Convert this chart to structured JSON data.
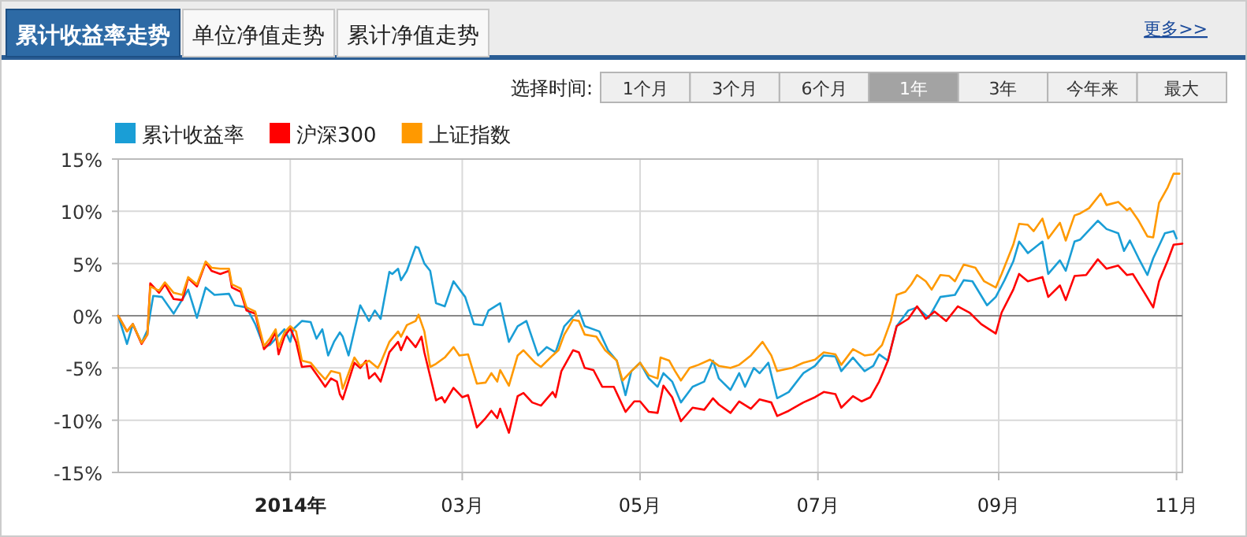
{
  "chart_data": {
    "type": "line",
    "annotations": [
      "累计收益率走势",
      "单位净值走势",
      "累计净值走势",
      "更多>>",
      "选择时间:",
      "1个月",
      "3个月",
      "6个月",
      "1年",
      "3年",
      "今年来",
      "最大"
    ],
    "xlim": [
      "2013-11-03",
      "2014-11-03"
    ],
    "xticks": [
      {
        "value": "2014-01-01",
        "label": "2014年"
      },
      {
        "value": "2014-03-01",
        "label": "03月"
      },
      {
        "value": "2014-05-01",
        "label": "05月"
      },
      {
        "value": "2014-07-01",
        "label": "07月"
      },
      {
        "value": "2014-09-01",
        "label": "09月"
      },
      {
        "value": "2014-11-01",
        "label": "11月"
      }
    ],
    "ylim": [
      -15,
      15
    ],
    "yticks": [
      {
        "value": -15,
        "label": "-15%"
      },
      {
        "value": -10,
        "label": "-10%"
      },
      {
        "value": -5,
        "label": "-5%"
      },
      {
        "value": 0,
        "label": "0%"
      },
      {
        "value": 5,
        "label": "5%"
      },
      {
        "value": 10,
        "label": "10%"
      },
      {
        "value": 15,
        "label": "15%"
      }
    ],
    "grid": true,
    "legend": "top left",
    "ref_lines": [
      {
        "axis": "y",
        "value": 0,
        "color": "#888888"
      }
    ],
    "series": [
      {
        "name": "累计收益率",
        "color": "#1a9ed6",
        "x": [
          "2013-11-03",
          "2013-11-06",
          "2013-11-08",
          "2013-11-11",
          "2013-11-13",
          "2013-11-15",
          "2013-11-18",
          "2013-11-22",
          "2013-11-27",
          "2013-11-30",
          "2013-12-03",
          "2013-12-06",
          "2013-12-11",
          "2013-12-13",
          "2013-12-17",
          "2013-12-20",
          "2013-12-23",
          "2013-12-25",
          "2013-12-30",
          "2014-01-01",
          "2014-01-02",
          "2014-01-05",
          "2014-01-08",
          "2014-01-10",
          "2014-01-12",
          "2014-01-14",
          "2014-01-16",
          "2014-01-18",
          "2014-01-19",
          "2014-01-21",
          "2014-01-25",
          "2014-01-28",
          "2014-01-30",
          "2014-02-01",
          "2014-02-04",
          "2014-02-05",
          "2014-02-07",
          "2014-02-08",
          "2014-02-10",
          "2014-02-13",
          "2014-02-14",
          "2014-02-16",
          "2014-02-18",
          "2014-02-20",
          "2014-02-23",
          "2014-02-26",
          "2014-03-02",
          "2014-03-05",
          "2014-03-08",
          "2014-03-10",
          "2014-03-14",
          "2014-03-17",
          "2014-03-20",
          "2014-03-23",
          "2014-03-27",
          "2014-03-30",
          "2014-04-02",
          "2014-04-05",
          "2014-04-10",
          "2014-04-12",
          "2014-04-17",
          "2014-04-20",
          "2014-04-23",
          "2014-04-26",
          "2014-04-28",
          "2014-05-01",
          "2014-05-04",
          "2014-05-07",
          "2014-05-09",
          "2014-05-12",
          "2014-05-15",
          "2014-05-19",
          "2014-05-23",
          "2014-05-26",
          "2014-05-28",
          "2014-06-01",
          "2014-06-04",
          "2014-06-06",
          "2014-06-09",
          "2014-06-11",
          "2014-06-14",
          "2014-06-17",
          "2014-06-21",
          "2014-06-26",
          "2014-06-30",
          "2014-07-03",
          "2014-07-07",
          "2014-07-09",
          "2014-07-13",
          "2014-07-17",
          "2014-07-20",
          "2014-07-22",
          "2014-07-25",
          "2014-07-28",
          "2014-08-01",
          "2014-08-04",
          "2014-08-08",
          "2014-08-12",
          "2014-08-17",
          "2014-08-20",
          "2014-08-23",
          "2014-08-28",
          "2014-08-31",
          "2014-09-03",
          "2014-09-06",
          "2014-09-08",
          "2014-09-11",
          "2014-09-16",
          "2014-09-18",
          "2014-09-22",
          "2014-09-24",
          "2014-09-27",
          "2014-09-29",
          "2014-10-05",
          "2014-10-08",
          "2014-10-12",
          "2014-10-14",
          "2014-10-16",
          "2014-10-19",
          "2014-10-22",
          "2014-10-24",
          "2014-10-28",
          "2014-10-31",
          "2014-11-01"
        ],
        "values": [
          0,
          -2.7,
          -0.8,
          -2.6,
          -1.4,
          1.9,
          1.8,
          0.2,
          2.5,
          -0.2,
          2.7,
          2.0,
          2.1,
          1.0,
          0.8,
          -0.8,
          -3.0,
          -2.8,
          -1.3,
          -2.5,
          -1.3,
          -0.5,
          -0.6,
          -2.2,
          -1.3,
          -3.8,
          -2.5,
          -1.6,
          -2.0,
          -3.8,
          1.0,
          -0.5,
          0.5,
          -0.3,
          4.2,
          4.0,
          4.5,
          3.4,
          4.3,
          6.6,
          6.5,
          5.0,
          4.3,
          1.2,
          0.9,
          3.3,
          1.8,
          -0.8,
          -0.9,
          0.5,
          1.2,
          -2.5,
          -1.0,
          -0.5,
          -3.8,
          -3.0,
          -3.5,
          -1.0,
          0.5,
          -1.0,
          -1.5,
          -3.3,
          -4.3,
          -7.6,
          -5.3,
          -4.5,
          -6.0,
          -6.8,
          -5.5,
          -6.3,
          -8.3,
          -6.8,
          -6.3,
          -4.3,
          -6.0,
          -7.1,
          -5.5,
          -6.8,
          -5.0,
          -5.5,
          -4.5,
          -7.9,
          -7.3,
          -5.5,
          -4.8,
          -3.8,
          -3.9,
          -5.3,
          -4.0,
          -5.3,
          -4.8,
          -3.7,
          -4.3,
          -1.0,
          0.5,
          0.8,
          -0.2,
          1.8,
          2.0,
          3.4,
          3.3,
          1.0,
          1.8,
          3.4,
          5.2,
          7.1,
          6.0,
          7.1,
          4.0,
          5.3,
          4.3,
          7.1,
          7.3,
          9.1,
          8.3,
          7.9,
          6.2,
          7.2,
          5.5,
          3.9,
          5.5,
          7.9,
          8.1,
          7.4
        ]
      },
      {
        "name": "沪深300",
        "color": "#ff0000",
        "x": [
          "2013-11-03",
          "2013-11-06",
          "2013-11-08",
          "2013-11-11",
          "2013-11-13",
          "2013-11-14",
          "2013-11-17",
          "2013-11-19",
          "2013-11-22",
          "2013-11-25",
          "2013-11-27",
          "2013-11-30",
          "2013-12-03",
          "2013-12-05",
          "2013-12-08",
          "2013-12-11",
          "2013-12-12",
          "2013-12-15",
          "2013-12-17",
          "2013-12-20",
          "2013-12-23",
          "2013-12-25",
          "2013-12-27",
          "2013-12-28",
          "2013-12-30",
          "2014-01-01",
          "2014-01-03",
          "2014-01-05",
          "2014-01-08",
          "2014-01-11",
          "2014-01-13",
          "2014-01-15",
          "2014-01-17",
          "2014-01-18",
          "2014-01-19",
          "2014-01-23",
          "2014-01-25",
          "2014-01-27",
          "2014-01-28",
          "2014-01-30",
          "2014-02-01",
          "2014-02-04",
          "2014-02-07",
          "2014-02-08",
          "2014-02-10",
          "2014-02-13",
          "2014-02-15",
          "2014-02-16",
          "2014-02-20",
          "2014-02-22",
          "2014-02-23",
          "2014-02-26",
          "2014-03-01",
          "2014-03-03",
          "2014-03-06",
          "2014-03-09",
          "2014-03-11",
          "2014-03-13",
          "2014-03-14",
          "2014-03-17",
          "2014-03-20",
          "2014-03-22",
          "2014-03-25",
          "2014-03-28",
          "2014-04-01",
          "2014-04-02",
          "2014-04-04",
          "2014-04-08",
          "2014-04-10",
          "2014-04-12",
          "2014-04-15",
          "2014-04-18",
          "2014-04-22",
          "2014-04-26",
          "2014-04-29",
          "2014-05-01",
          "2014-05-04",
          "2014-05-07",
          "2014-05-09",
          "2014-05-12",
          "2014-05-15",
          "2014-05-19",
          "2014-05-23",
          "2014-05-26",
          "2014-05-28",
          "2014-06-01",
          "2014-06-04",
          "2014-06-08",
          "2014-06-11",
          "2014-06-15",
          "2014-06-17",
          "2014-06-21",
          "2014-06-26",
          "2014-06-30",
          "2014-07-03",
          "2014-07-07",
          "2014-07-09",
          "2014-07-13",
          "2014-07-16",
          "2014-07-19",
          "2014-07-22",
          "2014-07-25",
          "2014-07-28",
          "2014-08-01",
          "2014-08-04",
          "2014-08-07",
          "2014-08-10",
          "2014-08-14",
          "2014-08-18",
          "2014-08-22",
          "2014-08-26",
          "2014-08-31",
          "2014-09-02",
          "2014-09-06",
          "2014-09-08",
          "2014-09-11",
          "2014-09-16",
          "2014-09-18",
          "2014-09-22",
          "2014-09-24",
          "2014-09-27",
          "2014-10-01",
          "2014-10-05",
          "2014-10-08",
          "2014-10-12",
          "2014-10-15",
          "2014-10-17",
          "2014-10-21",
          "2014-10-24",
          "2014-10-26",
          "2014-10-29",
          "2014-10-31",
          "2014-11-03"
        ],
        "values": [
          0,
          -1.5,
          -0.8,
          -2.7,
          -1.8,
          3.1,
          2.2,
          3.0,
          1.6,
          1.5,
          3.6,
          2.8,
          5.1,
          4.3,
          4.0,
          4.3,
          2.7,
          2.3,
          0.5,
          0.2,
          -3.2,
          -2.6,
          -1.6,
          -3.7,
          -2.0,
          -1.2,
          -2.5,
          -4.9,
          -4.8,
          -6.0,
          -6.8,
          -6.0,
          -6.3,
          -7.5,
          -8.0,
          -4.5,
          -5.0,
          -4.3,
          -6.0,
          -5.5,
          -6.3,
          -3.5,
          -2.5,
          -3.3,
          -2.0,
          -3.0,
          -2.0,
          -3.5,
          -8.1,
          -7.8,
          -8.3,
          -6.9,
          -7.8,
          -7.6,
          -10.7,
          -9.8,
          -9.1,
          -9.8,
          -8.9,
          -11.2,
          -7.7,
          -7.4,
          -8.3,
          -8.6,
          -7.3,
          -7.8,
          -5.3,
          -3.3,
          -3.5,
          -5.0,
          -5.2,
          -6.8,
          -6.8,
          -9.2,
          -8.2,
          -8.2,
          -9.2,
          -9.3,
          -6.7,
          -7.8,
          -10.1,
          -8.8,
          -9.0,
          -7.9,
          -8.5,
          -9.3,
          -8.2,
          -8.9,
          -8.0,
          -8.3,
          -9.6,
          -9.1,
          -8.3,
          -7.8,
          -7.3,
          -7.5,
          -8.8,
          -7.7,
          -8.2,
          -7.8,
          -6.3,
          -4.3,
          -1.0,
          -0.3,
          0.9,
          -0.3,
          0.4,
          -0.5,
          0.9,
          0.3,
          -0.8,
          -1.7,
          0.3,
          2.5,
          4.0,
          3.3,
          3.7,
          1.8,
          2.9,
          1.5,
          3.8,
          3.9,
          5.4,
          4.5,
          4.8,
          3.9,
          4.0,
          2.2,
          0.8,
          3.3,
          5.3,
          6.8,
          6.9
        ]
      },
      {
        "name": "上证指数",
        "color": "#ff9900",
        "x": [
          "2013-11-03",
          "2013-11-06",
          "2013-11-08",
          "2013-11-11",
          "2013-11-13",
          "2013-11-14",
          "2013-11-17",
          "2013-11-19",
          "2013-11-22",
          "2013-11-25",
          "2013-11-27",
          "2013-11-30",
          "2013-12-03",
          "2013-12-05",
          "2013-12-08",
          "2013-12-11",
          "2013-12-12",
          "2013-12-15",
          "2013-12-17",
          "2013-12-20",
          "2013-12-23",
          "2013-12-25",
          "2013-12-27",
          "2013-12-28",
          "2013-12-30",
          "2014-01-01",
          "2014-01-03",
          "2014-01-05",
          "2014-01-08",
          "2014-01-11",
          "2014-01-13",
          "2014-01-15",
          "2014-01-18",
          "2014-01-19",
          "2014-01-21",
          "2014-01-23",
          "2014-01-25",
          "2014-01-28",
          "2014-01-31",
          "2014-02-01",
          "2014-02-04",
          "2014-02-07",
          "2014-02-08",
          "2014-02-10",
          "2014-02-13",
          "2014-02-14",
          "2014-02-16",
          "2014-02-18",
          "2014-02-20",
          "2014-02-23",
          "2014-02-26",
          "2014-02-28",
          "2014-03-03",
          "2014-03-06",
          "2014-03-09",
          "2014-03-11",
          "2014-03-13",
          "2014-03-14",
          "2014-03-17",
          "2014-03-20",
          "2014-03-22",
          "2014-03-26",
          "2014-03-28",
          "2014-04-01",
          "2014-04-03",
          "2014-04-05",
          "2014-04-08",
          "2014-04-10",
          "2014-04-12",
          "2014-04-16",
          "2014-04-19",
          "2014-04-23",
          "2014-04-25",
          "2014-04-28",
          "2014-05-01",
          "2014-05-04",
          "2014-05-07",
          "2014-05-08",
          "2014-05-11",
          "2014-05-13",
          "2014-05-15",
          "2014-05-18",
          "2014-05-21",
          "2014-05-25",
          "2014-05-28",
          "2014-06-01",
          "2014-06-04",
          "2014-06-08",
          "2014-06-12",
          "2014-06-15",
          "2014-06-17",
          "2014-06-22",
          "2014-06-26",
          "2014-06-30",
          "2014-07-03",
          "2014-07-07",
          "2014-07-09",
          "2014-07-13",
          "2014-07-17",
          "2014-07-20",
          "2014-07-23",
          "2014-07-26",
          "2014-07-28",
          "2014-07-31",
          "2014-08-02",
          "2014-08-04",
          "2014-08-07",
          "2014-08-09",
          "2014-08-12",
          "2014-08-15",
          "2014-08-17",
          "2014-08-20",
          "2014-08-24",
          "2014-08-27",
          "2014-08-31",
          "2014-09-02",
          "2014-09-06",
          "2014-09-08",
          "2014-09-11",
          "2014-09-13",
          "2014-09-16",
          "2014-09-18",
          "2014-09-22",
          "2014-09-24",
          "2014-09-27",
          "2014-09-29",
          "2014-10-02",
          "2014-10-06",
          "2014-10-08",
          "2014-10-12",
          "2014-10-15",
          "2014-10-16",
          "2014-10-19",
          "2014-10-22",
          "2014-10-24",
          "2014-10-26",
          "2014-10-29",
          "2014-10-31",
          "2014-11-02"
        ],
        "values": [
          0,
          -1.5,
          -0.8,
          -2.6,
          -1.8,
          2.8,
          2.4,
          3.2,
          2.2,
          2.0,
          3.7,
          3.0,
          5.2,
          4.6,
          4.5,
          4.5,
          3.0,
          2.6,
          0.8,
          0.4,
          -2.9,
          -2.2,
          -1.3,
          -3.0,
          -1.6,
          -1.0,
          -1.5,
          -4.3,
          -4.5,
          -5.5,
          -6.1,
          -5.3,
          -5.5,
          -7.0,
          -5.5,
          -4.0,
          -4.8,
          -4.3,
          -5.0,
          -4.5,
          -2.5,
          -1.5,
          -2.0,
          -0.9,
          -0.5,
          0.1,
          -1.5,
          -4.9,
          -4.6,
          -4.0,
          -3.0,
          -3.8,
          -3.7,
          -6.5,
          -6.4,
          -5.5,
          -6.3,
          -5.2,
          -6.7,
          -3.8,
          -3.3,
          -4.5,
          -4.9,
          -3.8,
          -3.3,
          -1.8,
          -0.4,
          -0.5,
          -1.8,
          -2.0,
          -3.3,
          -4.3,
          -6.2,
          -5.3,
          -4.5,
          -5.7,
          -6.0,
          -4.0,
          -4.3,
          -5.3,
          -6.2,
          -5.0,
          -4.7,
          -4.2,
          -4.8,
          -5.0,
          -4.7,
          -3.8,
          -2.5,
          -3.8,
          -5.3,
          -5.0,
          -4.5,
          -4.2,
          -3.5,
          -3.7,
          -4.7,
          -3.2,
          -3.8,
          -3.7,
          -2.8,
          -0.5,
          2.0,
          2.3,
          3.0,
          3.9,
          3.3,
          2.5,
          3.9,
          3.8,
          3.3,
          4.9,
          4.6,
          3.3,
          2.7,
          4.0,
          6.8,
          8.8,
          8.7,
          8.1,
          9.3,
          7.4,
          8.9,
          7.2,
          9.6,
          9.8,
          10.3,
          11.7,
          10.6,
          10.9,
          10.1,
          10.3,
          9.1,
          7.6,
          7.5,
          10.8,
          12.3,
          13.6,
          13.6
        ]
      }
    ]
  }
}
